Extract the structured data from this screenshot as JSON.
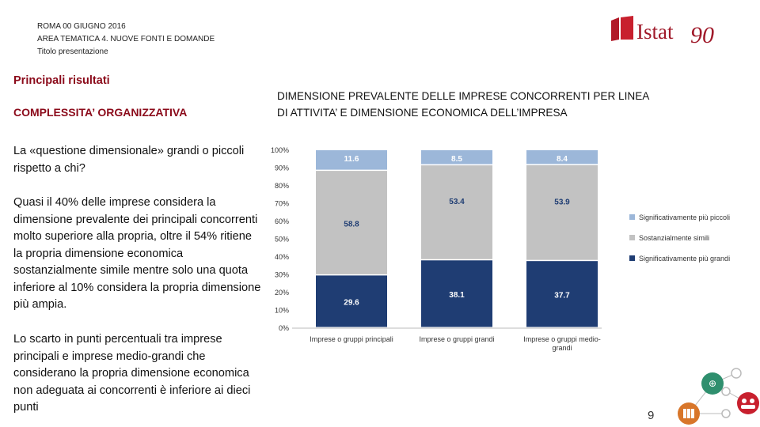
{
  "header": {
    "line1": "ROMA 00 GIUGNO 2016",
    "line2": "AREA TEMATICA 4. NUOVE FONTI E DOMANDE",
    "line3": "Titolo presentazione"
  },
  "logo": {
    "text": "Istat",
    "number": "90"
  },
  "left": {
    "section_title": "Principali risultati",
    "sub_title": "COMPLESSITA’ ORGANIZZATIVA",
    "p1": "La «questione dimensionale» grandi o piccoli rispetto a chi?",
    "p2": "Quasi il 40% delle imprese considera la dimensione prevalente dei principali concorrenti molto superiore alla propria, oltre il 54% ritiene la propria dimensione economica sostanzialmente simile mentre solo una quota inferiore al 10% considera la propria dimensione più ampia.",
    "p3": "Lo scarto in punti percentuali tra imprese principali e imprese medio-grandi che considerano la propria dimensione economica non adeguata ai concorrenti è inferiore ai dieci punti"
  },
  "chart_title": "DIMENSIONE PREVALENTE DELLE IMPRESE CONCORRENTI PER LINEA DI ATTIVITA’ E DIMENSIONE ECONOMICA DELL’IMPRESA",
  "page_number": "9",
  "colors": {
    "accent": "#8b0a1a",
    "series_dark": "#1f3d73",
    "series_grey": "#c2c2c2",
    "series_light": "#9cb7d9"
  },
  "chart_data": {
    "type": "bar",
    "stacked": true,
    "title": "DIMENSIONE PREVALENTE DELLE IMPRESE CONCORRENTI PER LINEA DI ATTIVITA’ E DIMENSIONE ECONOMICA DELL’IMPRESA",
    "categories": [
      "Imprese o gruppi principali",
      "Imprese o gruppi grandi",
      "Imprese o gruppi medio-grandi"
    ],
    "series": [
      {
        "name": "Significativamente più grandi",
        "color": "#1f3d73",
        "values": [
          29.6,
          38.1,
          37.7
        ]
      },
      {
        "name": "Sostanzialmente simili",
        "color": "#c2c2c2",
        "values": [
          58.8,
          53.4,
          53.9
        ]
      },
      {
        "name": "Significativamente più piccoli",
        "color": "#9cb7d9",
        "values": [
          11.6,
          8.5,
          8.4
        ]
      }
    ],
    "yticks": [
      "0%",
      "10%",
      "20%",
      "30%",
      "40%",
      "50%",
      "60%",
      "70%",
      "80%",
      "90%",
      "100%"
    ],
    "ylim": [
      0,
      100
    ],
    "legend_position": "right",
    "legend_order": [
      "Significativamente più piccoli",
      "Sostanzialmente simili",
      "Significativamente più grandi"
    ]
  }
}
